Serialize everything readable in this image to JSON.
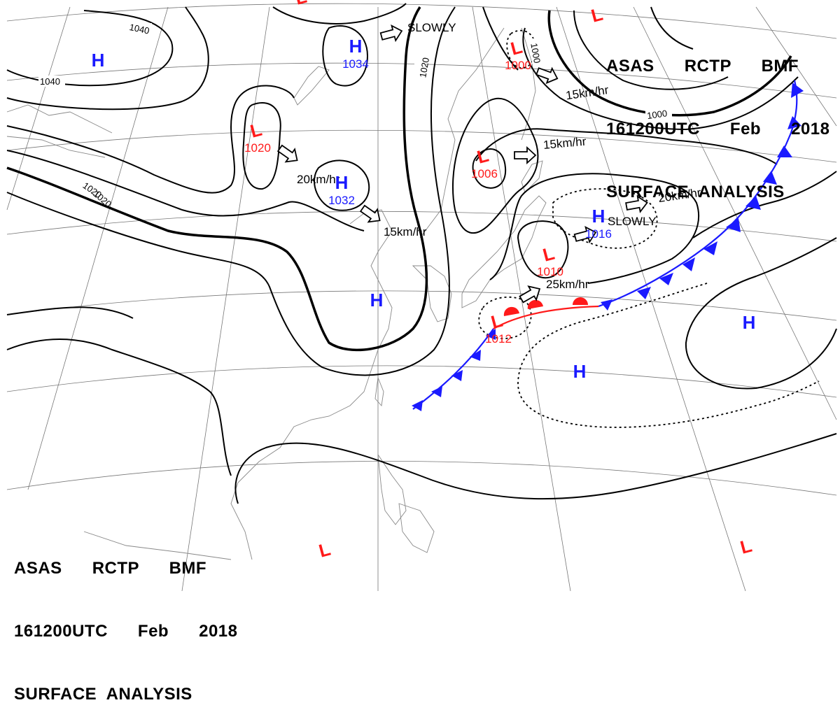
{
  "header": {
    "line1": "ASAS      RCTP      BMF",
    "line2": "161200UTC      Feb      2018",
    "line3": "SURFACE  ANALYSIS"
  },
  "footer": {
    "line1": "ASAS      RCTP      BMF",
    "line2": "161200UTC      Feb      2018",
    "line3": "SURFACE  ANALYSIS"
  },
  "colors": {
    "high": "#1a1aff",
    "low": "#ff1a1a",
    "cold_front": "#1a1aff",
    "warm_front": "#ff1a1a",
    "isobar": "#000000",
    "grid": "#777777",
    "coast": "#888888"
  },
  "pressure_centers": [
    {
      "type": "H",
      "symbol": "H",
      "value": ""
    },
    {
      "type": "H",
      "symbol": "H",
      "value": "1034"
    },
    {
      "type": "H",
      "symbol": "H",
      "value": "1032"
    },
    {
      "type": "H",
      "symbol": "H",
      "value": "1016"
    },
    {
      "type": "H",
      "symbol": "H",
      "value": ""
    },
    {
      "type": "H",
      "symbol": "H",
      "value": ""
    },
    {
      "type": "H",
      "symbol": "H",
      "value": ""
    },
    {
      "type": "L",
      "symbol": "L",
      "value": "1020"
    },
    {
      "type": "L",
      "symbol": "L",
      "value": "1006"
    },
    {
      "type": "L",
      "symbol": "L",
      "value": "1000"
    },
    {
      "type": "L",
      "symbol": "L",
      "value": "1010"
    },
    {
      "type": "L",
      "symbol": "L",
      "value": "1012"
    },
    {
      "type": "L",
      "symbol": "L",
      "value": ""
    },
    {
      "type": "L",
      "symbol": "L",
      "value": ""
    },
    {
      "type": "L",
      "symbol": "L",
      "value": ""
    },
    {
      "type": "L",
      "symbol": "L",
      "value": ""
    }
  ],
  "movements": [
    {
      "label": "SLOWLY"
    },
    {
      "label": "20km/hr"
    },
    {
      "label": "15km/hr"
    },
    {
      "label": "15km/hr"
    },
    {
      "label": "15km/hr"
    },
    {
      "label": "20km/hr"
    },
    {
      "label": "SLOWLY"
    },
    {
      "label": "25km/hr"
    }
  ],
  "isobar_labels": [
    "1040",
    "1040",
    "1020",
    "1020",
    "1020",
    "1000",
    "1000"
  ]
}
